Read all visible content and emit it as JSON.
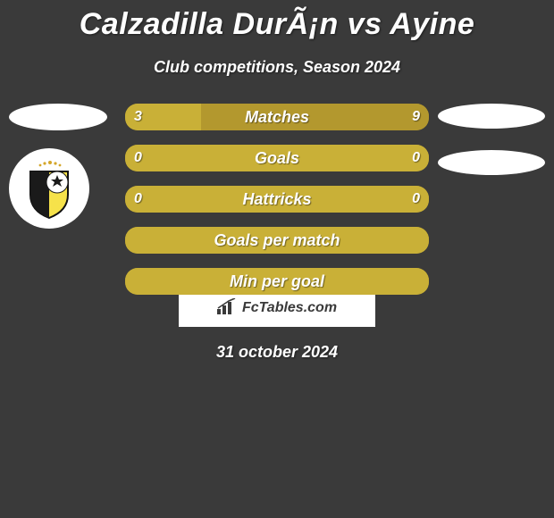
{
  "background_color": "#3a3a3a",
  "title": "Calzadilla DurÃ¡n vs Ayine",
  "subtitle": "Club competitions, Season 2024",
  "date": "31 october 2024",
  "branding": {
    "text": "FcTables.com"
  },
  "colors": {
    "bar_primary": "#c9b037",
    "bar_secondary": "#b3982e",
    "bar_neutral": "#9e8824"
  },
  "bars": [
    {
      "label": "Matches",
      "left_value": "3",
      "right_value": "9",
      "left_fill_pct": 25,
      "right_fill_pct": 75,
      "show_values": true,
      "bg_color": "#9e8824",
      "left_color": "#c9b037",
      "right_color": "#b3982e"
    },
    {
      "label": "Goals",
      "left_value": "0",
      "right_value": "0",
      "left_fill_pct": 50,
      "right_fill_pct": 50,
      "show_values": true,
      "bg_color": "#9e8824",
      "left_color": "#c9b037",
      "right_color": "#c9b037"
    },
    {
      "label": "Hattricks",
      "left_value": "0",
      "right_value": "0",
      "left_fill_pct": 50,
      "right_fill_pct": 50,
      "show_values": true,
      "bg_color": "#9e8824",
      "left_color": "#c9b037",
      "right_color": "#c9b037"
    },
    {
      "label": "Goals per match",
      "left_value": "",
      "right_value": "",
      "left_fill_pct": 50,
      "right_fill_pct": 50,
      "show_values": false,
      "bg_color": "#9e8824",
      "left_color": "#c9b037",
      "right_color": "#c9b037"
    },
    {
      "label": "Min per goal",
      "left_value": "",
      "right_value": "",
      "left_fill_pct": 50,
      "right_fill_pct": 50,
      "show_values": false,
      "bg_color": "#9e8824",
      "left_color": "#c9b037",
      "right_color": "#c9b037"
    }
  ],
  "crest": {
    "shield_fill": "#f6e24a",
    "shield_stroke": "#111111",
    "ball_fill": "#ffffff"
  }
}
